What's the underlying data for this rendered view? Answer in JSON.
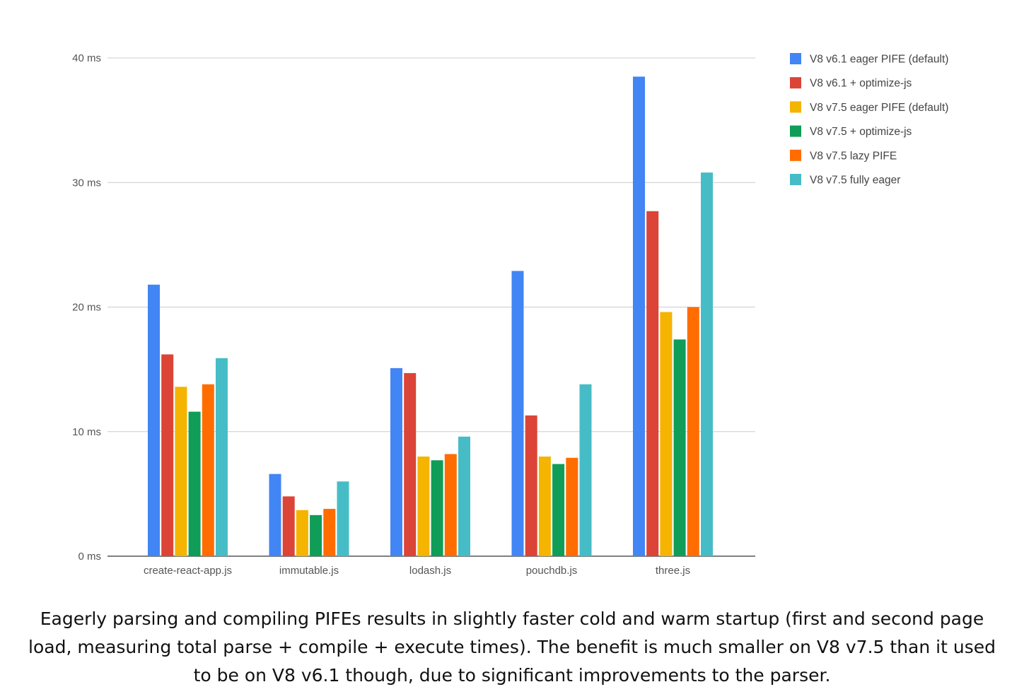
{
  "chart_data": {
    "type": "bar",
    "title": "",
    "xlabel": "",
    "ylabel": "",
    "ylim": [
      0,
      40
    ],
    "y_ticks": [
      0,
      10,
      20,
      30,
      40
    ],
    "y_tick_labels": [
      "0 ms",
      "10 ms",
      "20 ms",
      "30 ms",
      "40 ms"
    ],
    "grid": true,
    "legend_position": "right",
    "categories": [
      "create-react-app.js",
      "immutable.js",
      "lodash.js",
      "pouchdb.js",
      "three.js"
    ],
    "series": [
      {
        "name": "V8 v6.1 eager PIFE (default)",
        "color": "#4285f4",
        "values": [
          21.8,
          6.6,
          15.1,
          22.9,
          38.5
        ]
      },
      {
        "name": "V8 v6.1 + optimize-js",
        "color": "#db4437",
        "values": [
          16.2,
          4.8,
          14.7,
          11.3,
          27.7
        ]
      },
      {
        "name": "V8 v7.5 eager PIFE (default)",
        "color": "#f4b400",
        "values": [
          13.6,
          3.7,
          8.0,
          8.0,
          19.6
        ]
      },
      {
        "name": "V8 v7.5 + optimize-js",
        "color": "#0f9d58",
        "values": [
          11.6,
          3.3,
          7.7,
          7.4,
          17.4
        ]
      },
      {
        "name": "V8 v7.5 lazy PIFE",
        "color": "#ff6d00",
        "values": [
          13.8,
          3.8,
          8.2,
          7.9,
          20.0
        ]
      },
      {
        "name": "V8 v7.5 fully eager",
        "color": "#46bdc6",
        "values": [
          15.9,
          6.0,
          9.6,
          13.8,
          30.8
        ]
      }
    ]
  },
  "caption": "Eagerly parsing and compiling PIFEs results in slightly faster cold and warm startup (first and second page load, measuring total parse + compile + execute times). The benefit is much smaller on V8 v7.5 than it used to be on V8 v6.1 though, due to significant improvements to the parser."
}
